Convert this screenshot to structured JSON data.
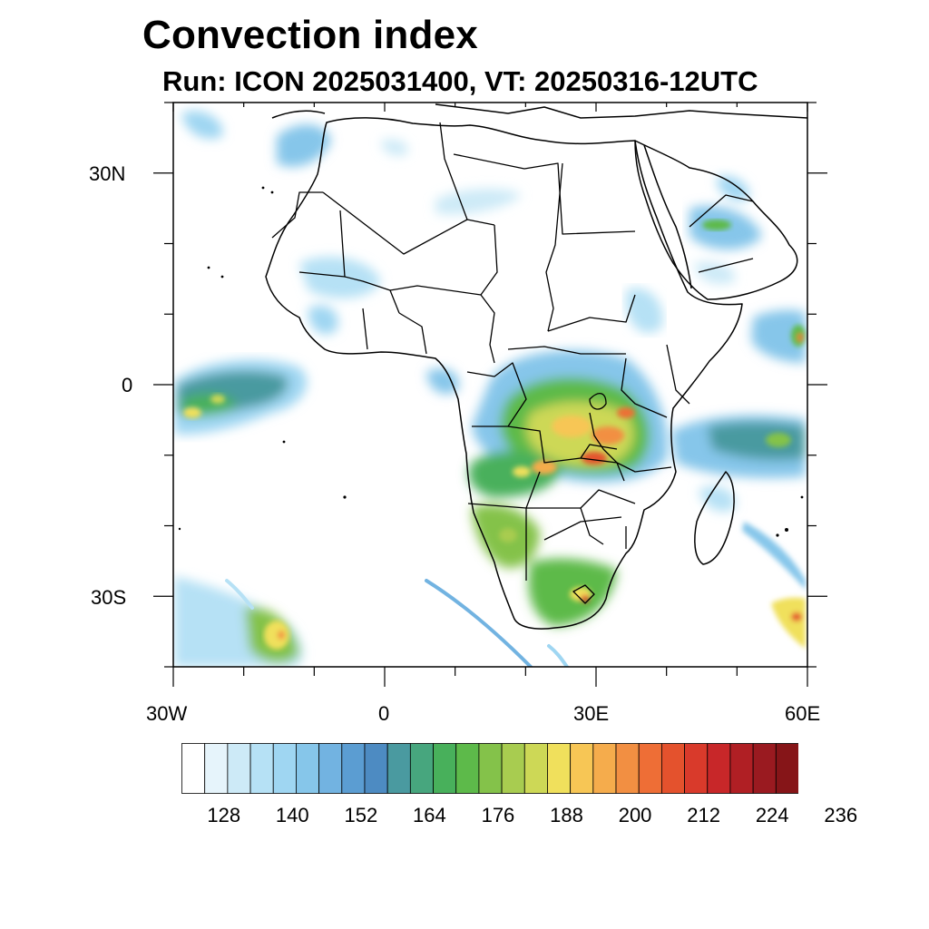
{
  "header": {
    "title": "Convection index",
    "subtitle": "Run: ICON 2025031400,  VT: 20250316-12UTC"
  },
  "map": {
    "lon_range": [
      -30,
      60
    ],
    "lat_range": [
      -40,
      40
    ],
    "lat_labels": [
      "30N",
      "0",
      "30S"
    ],
    "lon_labels": [
      "30W",
      "0",
      "30E",
      "60E"
    ],
    "field": "convection index",
    "high_value_regions": [
      "Congo basin and Great Lakes",
      "Angola",
      "Zambia",
      "eastern South Africa",
      "equatorial Atlantic",
      "equatorial Indian Ocean east of Africa",
      "Arabian Sea coast",
      "southwest Indian Ocean (south of Madagascar)",
      "South Atlantic southwest",
      "Saudi Arabia"
    ]
  },
  "colorbar": {
    "levels": [
      128,
      140,
      152,
      164,
      176,
      188,
      200,
      212,
      224,
      236
    ],
    "colors": [
      "#ffffff",
      "#e6f4fb",
      "#cdeaf7",
      "#b6e1f5",
      "#9fd6f2",
      "#86c6ea",
      "#72b3e1",
      "#5b9dd2",
      "#4d8bc2",
      "#4a9aa0",
      "#47a67e",
      "#48b05b",
      "#5dba4a",
      "#84c24a",
      "#a8cc50",
      "#cdd856",
      "#f0e05c",
      "#f7c655",
      "#f5ac4c",
      "#f28f42",
      "#ee6e36",
      "#e4522d",
      "#d93a2b",
      "#c82729",
      "#b01f24",
      "#9a1a20",
      "#861518"
    ]
  }
}
